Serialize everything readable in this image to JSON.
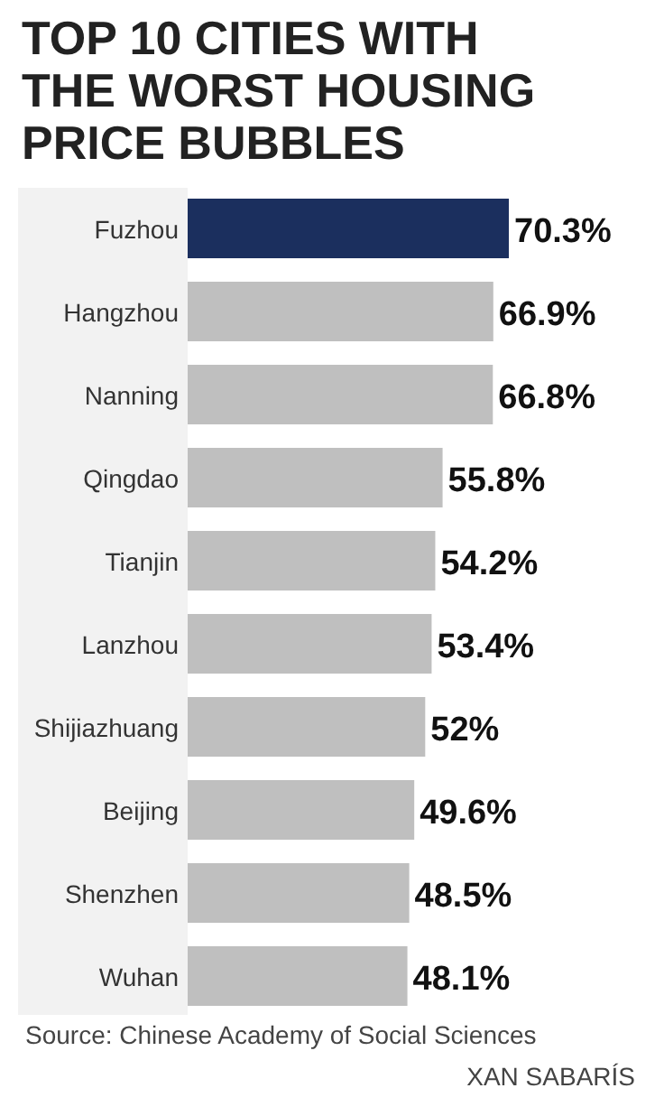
{
  "chart_data": {
    "type": "bar",
    "orientation": "horizontal",
    "title": "TOP 10 CITIES WITH THE WORST HOUSING PRICE BUBBLES",
    "categories": [
      "Fuzhou",
      "Hangzhou",
      "Nanning",
      "Qingdao",
      "Tianjin",
      "Lanzhou",
      "Shijiazhuang",
      "Beijing",
      "Shenzhen",
      "Wuhan"
    ],
    "values": [
      70.3,
      66.9,
      66.8,
      55.8,
      54.2,
      53.4,
      52,
      49.6,
      48.5,
      48.1
    ],
    "colors": [
      "#1b2f5e",
      "#bfbfbf",
      "#bfbfbf",
      "#bfbfbf",
      "#bfbfbf",
      "#bfbfbf",
      "#bfbfbf",
      "#bfbfbf",
      "#bfbfbf",
      "#bfbfbf"
    ],
    "value_labels": [
      "70.3%",
      "66.9%",
      "66.8%",
      "55.8%",
      "54.2%",
      "53.4%",
      "52%",
      "49.6%",
      "48.5%",
      "48.1%"
    ],
    "annotations": [
      "Source: Chinese Academy of Social Sciences",
      "XAN SABARÍS"
    ]
  }
}
